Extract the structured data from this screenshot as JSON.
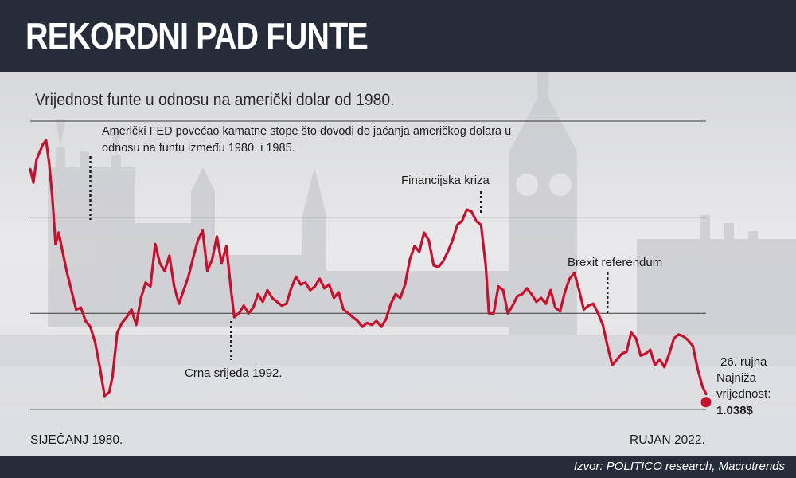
{
  "header": {
    "title": "REKORDNI PAD FUNTE"
  },
  "footer": {
    "source": "Izvor: POLITICO research, Macrotrends"
  },
  "chart_data": {
    "type": "line",
    "subtitle": "Vrijednost funte u odnosu na američki dolar od 1980.",
    "x_start_label": "SIJEČANJ 1980.",
    "x_end_label": "RUJAN 2022.",
    "x_range": [
      1980,
      2022.73
    ],
    "ylim": [
      0.95,
      2.5
    ],
    "gridlines": [
      1.0,
      1.5,
      2.0,
      2.5
    ],
    "color": "#c8102e",
    "series": [
      {
        "x": [
          1980.0,
          1980.2,
          1980.4,
          1980.6,
          1980.8,
          1981.0,
          1981.2,
          1981.4,
          1981.6,
          1981.8,
          1982.0,
          1982.3,
          1982.6,
          1982.9,
          1983.2,
          1983.5,
          1983.8,
          1984.1,
          1984.4,
          1984.7,
          1985.0,
          1985.2,
          1985.5,
          1985.8,
          1986.1,
          1986.4,
          1986.7,
          1987.0,
          1987.3,
          1987.6,
          1987.9,
          1988.2,
          1988.5,
          1988.8,
          1989.1,
          1989.4,
          1989.7,
          1990.0,
          1990.3,
          1990.6,
          1990.9,
          1991.2,
          1991.5,
          1991.8,
          1992.1,
          1992.4,
          1992.7,
          1992.9,
          1993.2,
          1993.5,
          1993.8,
          1994.1,
          1994.4,
          1994.7,
          1995.0,
          1995.3,
          1995.6,
          1995.9,
          1996.2,
          1996.5,
          1996.8,
          1997.1,
          1997.4,
          1997.7,
          1998.0,
          1998.3,
          1998.6,
          1998.9,
          1999.2,
          1999.5,
          1999.8,
          2000.1,
          2000.4,
          2000.7,
          2001.0,
          2001.3,
          2001.6,
          2001.9,
          2002.2,
          2002.5,
          2002.8,
          2003.1,
          2003.4,
          2003.7,
          2004.0,
          2004.3,
          2004.6,
          2004.9,
          2005.2,
          2005.5,
          2005.8,
          2006.1,
          2006.4,
          2006.7,
          2007.0,
          2007.3,
          2007.6,
          2007.9,
          2008.2,
          2008.5,
          2008.8,
          2009.0,
          2009.3,
          2009.6,
          2009.9,
          2010.2,
          2010.5,
          2010.8,
          2011.1,
          2011.4,
          2011.7,
          2012.0,
          2012.3,
          2012.6,
          2012.9,
          2013.2,
          2013.5,
          2013.8,
          2014.1,
          2014.4,
          2014.7,
          2015.0,
          2015.3,
          2015.6,
          2015.9,
          2016.2,
          2016.5,
          2016.8,
          2017.1,
          2017.4,
          2017.7,
          2018.0,
          2018.3,
          2018.6,
          2018.9,
          2019.2,
          2019.5,
          2019.8,
          2020.1,
          2020.4,
          2020.7,
          2021.0,
          2021.3,
          2021.6,
          2021.9,
          2022.2,
          2022.5,
          2022.73
        ],
        "y": [
          2.25,
          2.18,
          2.3,
          2.34,
          2.38,
          2.4,
          2.28,
          2.1,
          1.86,
          1.92,
          1.84,
          1.72,
          1.62,
          1.52,
          1.53,
          1.46,
          1.43,
          1.35,
          1.22,
          1.07,
          1.09,
          1.17,
          1.4,
          1.45,
          1.48,
          1.52,
          1.44,
          1.58,
          1.66,
          1.64,
          1.86,
          1.76,
          1.72,
          1.8,
          1.64,
          1.55,
          1.62,
          1.69,
          1.79,
          1.88,
          1.93,
          1.72,
          1.78,
          1.9,
          1.76,
          1.85,
          1.62,
          1.48,
          1.5,
          1.54,
          1.5,
          1.53,
          1.6,
          1.56,
          1.62,
          1.58,
          1.56,
          1.54,
          1.55,
          1.63,
          1.69,
          1.65,
          1.66,
          1.62,
          1.64,
          1.68,
          1.63,
          1.65,
          1.58,
          1.61,
          1.52,
          1.5,
          1.48,
          1.46,
          1.43,
          1.45,
          1.44,
          1.46,
          1.43,
          1.47,
          1.55,
          1.6,
          1.58,
          1.65,
          1.78,
          1.85,
          1.82,
          1.92,
          1.88,
          1.75,
          1.74,
          1.77,
          1.82,
          1.88,
          1.96,
          1.98,
          2.04,
          2.03,
          1.98,
          1.96,
          1.75,
          1.5,
          1.5,
          1.64,
          1.62,
          1.5,
          1.54,
          1.59,
          1.6,
          1.63,
          1.6,
          1.56,
          1.58,
          1.55,
          1.62,
          1.53,
          1.51,
          1.61,
          1.68,
          1.71,
          1.62,
          1.52,
          1.54,
          1.55,
          1.5,
          1.44,
          1.33,
          1.23,
          1.26,
          1.29,
          1.3,
          1.4,
          1.37,
          1.28,
          1.29,
          1.31,
          1.23,
          1.26,
          1.22,
          1.29,
          1.37,
          1.39,
          1.38,
          1.36,
          1.33,
          1.21,
          1.12,
          1.08
        ]
      }
    ],
    "annotations": [
      {
        "x": 1983.8,
        "lines": [
          "Američki FED povećao kamatne stope što dovodi do jačanja američkog dolara u",
          "odnosu na funtu između 1980. i 1985."
        ]
      },
      {
        "x": 2008.5,
        "lines": [
          "Financijska kriza"
        ]
      },
      {
        "x": 1992.7,
        "lines": [
          "Crna srijeda 1992."
        ]
      },
      {
        "x": 2016.5,
        "lines": [
          "Brexit referendum"
        ]
      }
    ],
    "end_label": {
      "lines": [
        "26. rujna",
        "Najniža",
        "vrijednost:"
      ],
      "value": "1.038$",
      "y": 1.038
    }
  }
}
